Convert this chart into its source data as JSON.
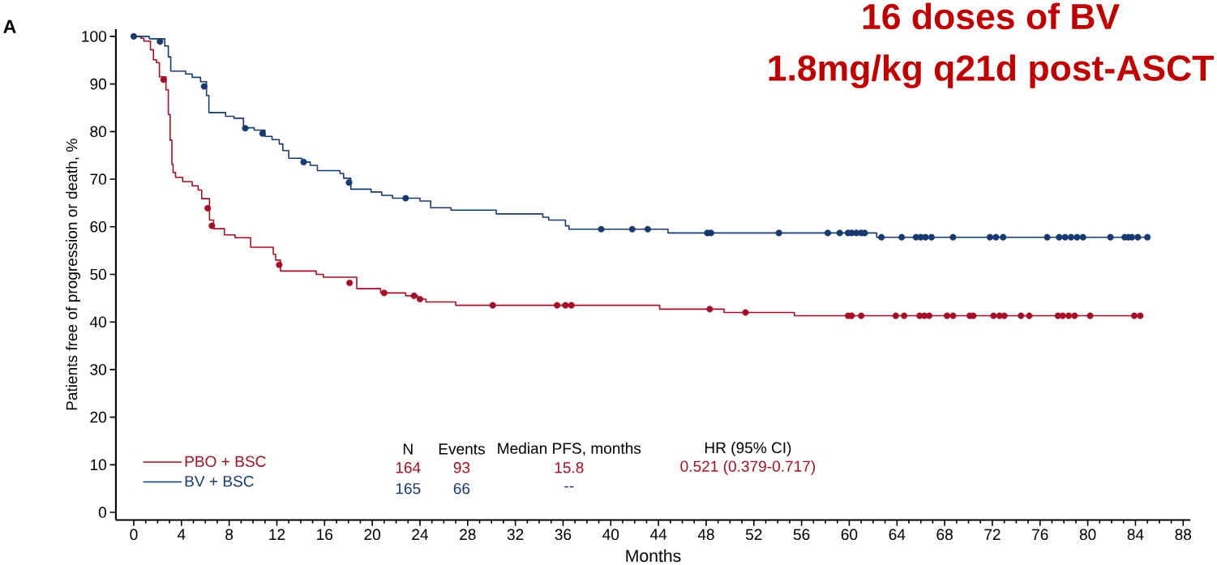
{
  "chart_data": {
    "type": "step",
    "title": "16 doses of BV",
    "subtitle": "1.8mg/kg q21d post-ASCT",
    "xlabel": "Months",
    "ylabel": "Patients free of progression or death, %",
    "xlim": [
      -1.5,
      88.6
    ],
    "ylim": [
      -1.6,
      101.5
    ],
    "xticks": [
      0,
      4,
      8,
      12,
      16,
      20,
      24,
      28,
      32,
      36,
      40,
      44,
      48,
      52,
      56,
      60,
      64,
      68,
      72,
      76,
      80,
      84,
      88
    ],
    "yticks": [
      0,
      10,
      20,
      30,
      40,
      50,
      60,
      70,
      80,
      90,
      100
    ],
    "grid": false,
    "legend": "bottom left",
    "annotations": [
      "A",
      "N",
      "Events",
      "Median PFS, months",
      "HR (95% CI)",
      "164",
      "93",
      "15.8",
      "0.521 (0.379-0.717)",
      "165",
      "66",
      "--"
    ],
    "series": [
      {
        "name": "PBO + BSC",
        "marker": "none",
        "color": "#a50f26",
        "x": [
          0,
          0.6,
          0.85,
          1.4,
          1.65,
          1.9,
          2.15,
          2.7,
          2.9,
          3.05,
          3.2,
          3.3,
          3.5,
          4.1,
          4.9,
          5.4,
          5.7,
          6.35,
          6.7,
          7.6,
          8.5,
          9.8,
          11.7,
          11.9,
          12.3,
          15.3,
          15.9,
          18.7,
          20.7,
          22.8,
          23.8,
          24.5,
          27.0,
          44.1,
          49.5,
          55.4,
          84.4
        ],
        "values": [
          100,
          99.6,
          99.0,
          97.2,
          95.1,
          94.5,
          91.5,
          88.8,
          83.6,
          78.2,
          73.1,
          71.4,
          70.4,
          69.5,
          68.6,
          67.7,
          65.9,
          61.4,
          59.6,
          58.3,
          57.7,
          55.7,
          54.2,
          53.0,
          50.7,
          50.0,
          49.4,
          47.0,
          46.1,
          45.5,
          44.8,
          44.2,
          43.5,
          42.7,
          42.0,
          41.3,
          41.3
        ]
      },
      {
        "name": "BV + BSC",
        "marker": "none",
        "color": "#163a70",
        "x": [
          0,
          1.3,
          2.6,
          2.9,
          3.1,
          4.35,
          4.9,
          5.6,
          6.1,
          6.3,
          7.7,
          8.4,
          9.2,
          10.1,
          11.0,
          11.6,
          12.2,
          12.5,
          13.0,
          14.1,
          14.8,
          15.4,
          17.3,
          17.6,
          18.2,
          19.9,
          20.8,
          21.7,
          24.0,
          24.9,
          26.6,
          30.4,
          34.3,
          34.8,
          36.2,
          36.5,
          44.8,
          62.3,
          85.0
        ],
        "values": [
          100,
          99.5,
          98.0,
          95.7,
          92.7,
          92.1,
          91.4,
          90.5,
          87.6,
          84.0,
          83.2,
          82.8,
          80.8,
          80.3,
          79.0,
          78.3,
          77.4,
          76.0,
          74.4,
          73.6,
          72.9,
          71.8,
          71.2,
          70.2,
          67.9,
          67.3,
          66.6,
          66.0,
          65.4,
          64.0,
          63.5,
          62.7,
          62.0,
          61.4,
          60.2,
          59.5,
          58.7,
          57.8,
          57.8
        ]
      },
      {
        "type": "scatter",
        "marker": "circle",
        "color": "#a50f26",
        "x": [
          2.5,
          6.2,
          6.55,
          12.2,
          18.1,
          21.0,
          23.5,
          24.0,
          30.1,
          35.5,
          36.2,
          36.7,
          48.3,
          51.3,
          59.9,
          60.2,
          61.0,
          63.9,
          64.6,
          65.9,
          66.3,
          66.7,
          68.2,
          68.7,
          70.1,
          70.4,
          72.1,
          72.6,
          73.0,
          74.4,
          75.1,
          77.5,
          77.9,
          78.4,
          78.9,
          80.2,
          83.9,
          84.4
        ],
        "values": [
          90.9,
          63.9,
          60.2,
          52.0,
          48.2,
          46.1,
          45.5,
          44.8,
          43.5,
          43.5,
          43.5,
          43.5,
          42.7,
          42.0,
          41.3,
          41.3,
          41.3,
          41.3,
          41.3,
          41.3,
          41.3,
          41.3,
          41.3,
          41.3,
          41.3,
          41.3,
          41.3,
          41.3,
          41.3,
          41.3,
          41.3,
          41.3,
          41.3,
          41.3,
          41.3,
          41.3,
          41.3,
          41.3
        ]
      },
      {
        "type": "scatter",
        "marker": "circle",
        "color": "#163a70",
        "x": [
          0,
          2.2,
          5.9,
          9.35,
          10.8,
          14.25,
          18.05,
          22.8,
          39.2,
          41.8,
          43.1,
          48.1,
          48.4,
          54.1,
          58.2,
          59.2,
          59.9,
          60.2,
          60.6,
          61.0,
          61.3,
          62.7,
          64.4,
          65.6,
          66.0,
          66.4,
          66.9,
          68.7,
          71.8,
          72.3,
          72.9,
          76.6,
          77.6,
          78.1,
          78.6,
          79.1,
          79.6,
          81.9,
          83.1,
          83.4,
          83.7,
          84.2,
          85.0
        ],
        "values": [
          100,
          98.9,
          89.5,
          80.7,
          79.6,
          73.6,
          69.3,
          66.0,
          59.5,
          59.5,
          59.5,
          58.7,
          58.7,
          58.7,
          58.7,
          58.7,
          58.7,
          58.7,
          58.7,
          58.7,
          58.7,
          57.8,
          57.8,
          57.8,
          57.8,
          57.8,
          57.8,
          57.8,
          57.8,
          57.8,
          57.8,
          57.8,
          57.8,
          57.8,
          57.8,
          57.8,
          57.8,
          57.8,
          57.8,
          57.8,
          57.8,
          57.8,
          57.8
        ]
      }
    ]
  }
}
